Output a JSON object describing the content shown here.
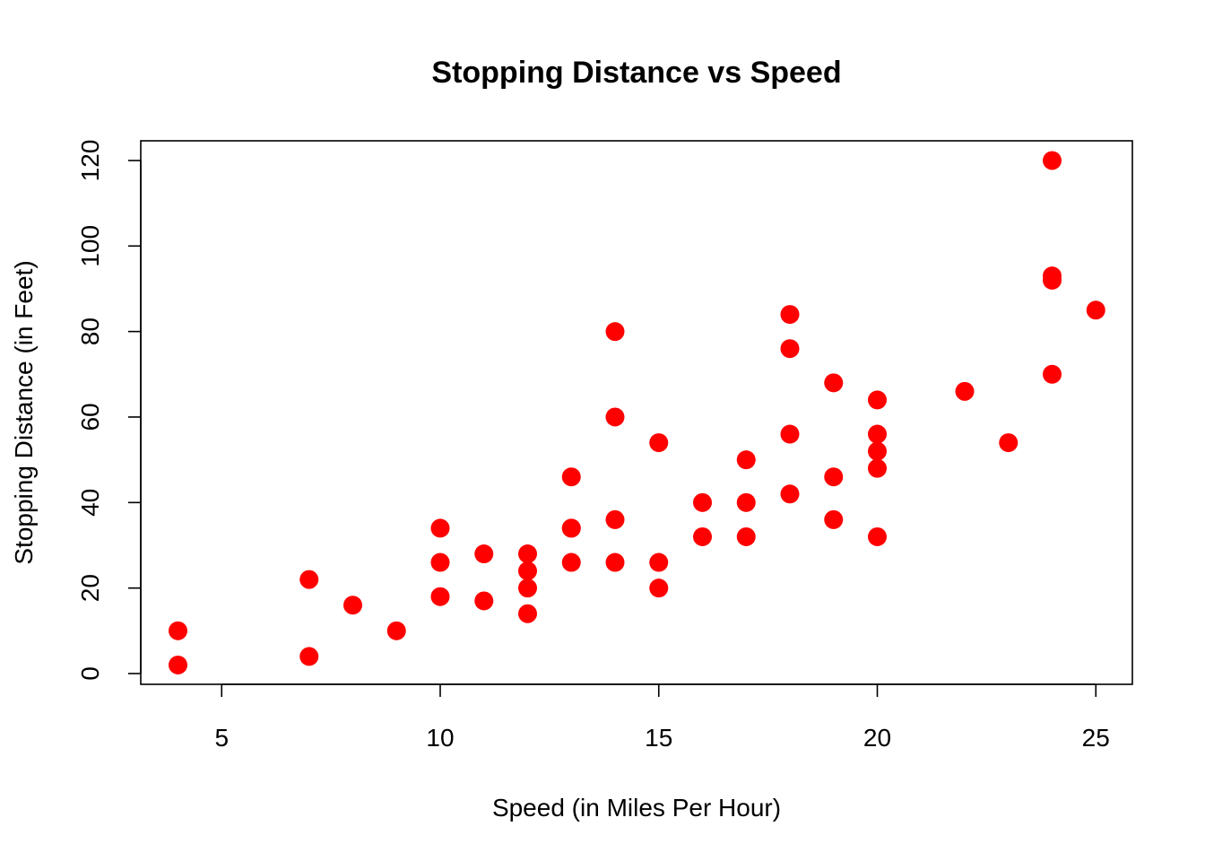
{
  "chart_data": {
    "type": "scatter",
    "title": "Stopping Distance vs Speed",
    "xlabel": "Speed (in Miles Per Hour)",
    "ylabel": "Stopping Distance (in Feet)",
    "xlim": [
      4,
      25
    ],
    "ylim": [
      0,
      120
    ],
    "x_ticks": [
      "5",
      "10",
      "15",
      "20",
      "25"
    ],
    "y_ticks": [
      "0",
      "20",
      "40",
      "60",
      "80",
      "100",
      "120"
    ],
    "grid": false,
    "legend": "none",
    "point_color": "#ff0000",
    "series": [
      {
        "x": [
          4,
          4,
          7,
          7,
          8,
          9,
          10,
          10,
          10,
          11,
          11,
          12,
          12,
          12,
          12,
          13,
          13,
          13,
          13,
          14,
          14,
          14,
          14,
          15,
          15,
          15,
          16,
          16,
          17,
          17,
          17,
          18,
          18,
          18,
          18,
          19,
          19,
          19,
          20,
          20,
          20,
          20,
          20,
          22,
          23,
          24,
          24,
          24,
          24,
          25
        ],
        "y": [
          2,
          10,
          4,
          22,
          16,
          10,
          18,
          26,
          34,
          17,
          28,
          14,
          20,
          24,
          28,
          26,
          34,
          34,
          46,
          26,
          36,
          60,
          80,
          20,
          26,
          54,
          32,
          40,
          32,
          40,
          50,
          42,
          56,
          76,
          84,
          36,
          46,
          68,
          32,
          48,
          52,
          56,
          64,
          66,
          54,
          70,
          92,
          93,
          120,
          85
        ]
      }
    ]
  }
}
